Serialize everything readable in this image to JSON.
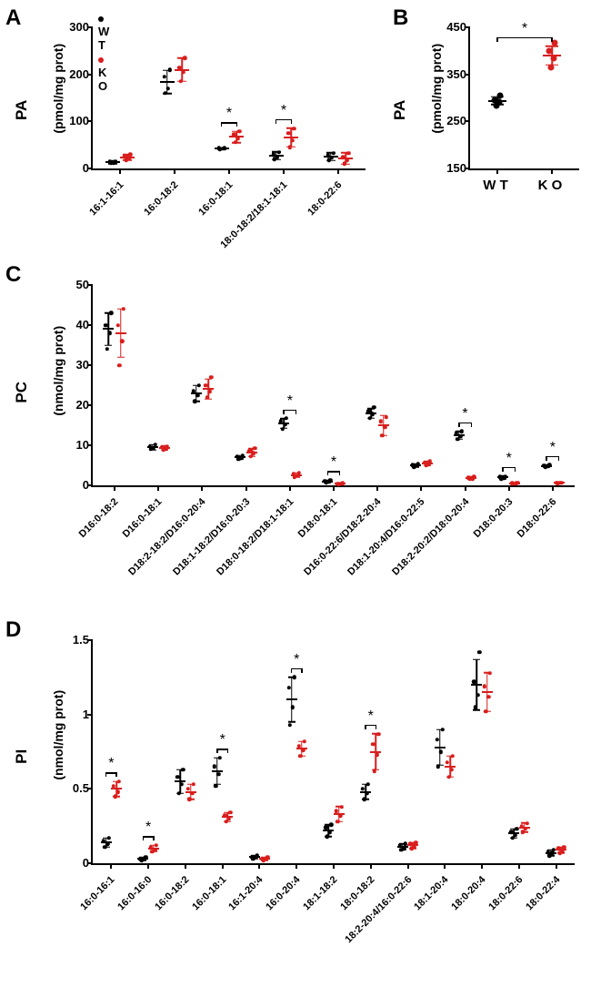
{
  "colors": {
    "wt": "#000000",
    "ko": "#d91e1e",
    "axis": "#000000",
    "bg": "#ffffff"
  },
  "legend": {
    "wt": "W T",
    "ko": "K O"
  },
  "panels": {
    "A": {
      "label": "A",
      "ytitle": "PA",
      "ysub": "(pmol/mg prot)",
      "ylim": [
        0,
        300
      ],
      "ytick_step": 100,
      "categories": [
        "16:1-16:1",
        "16:0-18:2",
        "16:0-18:1",
        "18:0-18:2/18:1-18:1",
        "18:0-22:6"
      ],
      "wt": {
        "mean": [
          13,
          184,
          42,
          27,
          25
        ],
        "err": [
          3,
          25,
          2,
          8,
          8
        ],
        "points": [
          [
            11,
            12,
            15,
            14
          ],
          [
            160,
            170,
            195,
            210
          ],
          [
            40,
            42,
            43,
            43
          ],
          [
            20,
            24,
            30,
            34
          ],
          [
            18,
            23,
            28,
            32
          ]
        ]
      },
      "ko": {
        "mean": [
          24,
          210,
          67,
          66,
          21
        ],
        "err": [
          6,
          25,
          12,
          20,
          12
        ],
        "points": [
          [
            18,
            22,
            26,
            30
          ],
          [
            186,
            205,
            215,
            235
          ],
          [
            56,
            63,
            72,
            79
          ],
          [
            45,
            60,
            75,
            85
          ],
          [
            10,
            18,
            24,
            33
          ]
        ]
      },
      "sig": [
        2,
        3
      ]
    },
    "B": {
      "label": "B",
      "ytitle": "PA",
      "ysub": "(pmol/mg prot)",
      "ylim": [
        150,
        450
      ],
      "ytick_step": 100,
      "categories": [
        "W T",
        "K O"
      ],
      "wt": {
        "mean": [
          294
        ],
        "err": [
          8
        ],
        "points": [
          [
            284,
            292,
            296,
            305
          ]
        ]
      },
      "ko": {
        "mean": [
          390
        ],
        "err": [
          20
        ],
        "points": [
          [
            365,
            385,
            400,
            418
          ]
        ]
      },
      "sig": [
        0
      ]
    },
    "C": {
      "label": "C",
      "ytitle": "PC",
      "ysub": "(nmol/mg prot)",
      "ylim": [
        0,
        50
      ],
      "ytick_step": 10,
      "categories": [
        "D16:0-18:2",
        "D16:0-18:1",
        "D18:2-18:2/D16:0-20:4",
        "D18:1-18:2/D16:0-20:3",
        "D18:0-18:2/D18:1-18:1",
        "D18:0-18:1",
        "D16:0-22:6/D18:2-20:4",
        "D18:1-20:4/D16:0-22:5",
        "D18:2-20:2/D18:0-20:4",
        "D18:0-20:3",
        "D18:0-22:6"
      ],
      "wt": {
        "mean": [
          39,
          9.5,
          23,
          7,
          15.5,
          1,
          18,
          5,
          12.5,
          2,
          4.8
        ],
        "err": [
          4,
          0.7,
          2,
          0.5,
          1.2,
          0.3,
          1.2,
          0.4,
          1,
          0.3,
          0.3
        ],
        "points": [
          [
            34,
            38,
            40,
            43
          ],
          [
            9,
            9.3,
            9.7,
            10.2
          ],
          [
            21,
            22.5,
            23.5,
            25
          ],
          [
            6.5,
            6.8,
            7.2,
            7.5
          ],
          [
            14,
            15.2,
            16,
            16.8
          ],
          [
            0.7,
            0.9,
            1.1,
            1.3
          ],
          [
            16.8,
            17.8,
            18.5,
            19.5
          ],
          [
            4.6,
            4.9,
            5.1,
            5.4
          ],
          [
            11.5,
            12.3,
            13,
            13.5
          ],
          [
            1.7,
            1.9,
            2.1,
            2.3
          ],
          [
            4.5,
            4.7,
            5,
            5.1
          ]
        ]
      },
      "ko": {
        "mean": [
          38,
          9.3,
          24,
          8.2,
          2.6,
          0.4,
          15,
          5.5,
          1.8,
          0.5,
          0.6
        ],
        "err": [
          6,
          0.5,
          2.5,
          1,
          0.5,
          0.1,
          2.5,
          0.5,
          0.3,
          0.1,
          0.1
        ],
        "points": [
          [
            30,
            36,
            40,
            44
          ],
          [
            8.8,
            9.1,
            9.5,
            9.8
          ],
          [
            22,
            23.5,
            25,
            27
          ],
          [
            7.2,
            8,
            8.6,
            9.3
          ],
          [
            2.0,
            2.5,
            2.9,
            3.1
          ],
          [
            0.3,
            0.4,
            0.4,
            0.5
          ],
          [
            12.5,
            14.5,
            16,
            17
          ],
          [
            5,
            5.3,
            5.7,
            6
          ],
          [
            1.5,
            1.7,
            1.9,
            2.1
          ],
          [
            0.4,
            0.5,
            0.5,
            0.6
          ],
          [
            0.5,
            0.6,
            0.6,
            0.7
          ]
        ]
      },
      "sig": [
        4,
        5,
        8,
        9,
        10
      ]
    },
    "D": {
      "label": "D",
      "ytitle": "PI",
      "ysub": "(nmol/mg prot)",
      "ylim": [
        0,
        1.5
      ],
      "ytick_step": 0.5,
      "categories": [
        "16:0-16:1",
        "16:0-16:0",
        "16:0-18:2",
        "16:0-18:1",
        "16:1-20:4",
        "16:0-20:4",
        "18:1-18:2",
        "18:0-18:2",
        "18:2-20:4/16:0-22:6",
        "18:1-20:4",
        "18:0-20:4",
        "18:0-22:6",
        "18:0-22:4"
      ],
      "wt": {
        "mean": [
          0.14,
          0.03,
          0.55,
          0.62,
          0.04,
          1.1,
          0.22,
          0.48,
          0.11,
          0.78,
          1.2,
          0.2,
          0.07
        ],
        "err": [
          0.03,
          0.01,
          0.08,
          0.09,
          0.01,
          0.15,
          0.04,
          0.05,
          0.02,
          0.12,
          0.17,
          0.03,
          0.02
        ],
        "points": [
          [
            0.11,
            0.13,
            0.15,
            0.17
          ],
          [
            0.02,
            0.03,
            0.03,
            0.04
          ],
          [
            0.47,
            0.53,
            0.58,
            0.63
          ],
          [
            0.52,
            0.6,
            0.65,
            0.71
          ],
          [
            0.03,
            0.04,
            0.04,
            0.05
          ],
          [
            0.93,
            1.05,
            1.18,
            1.25
          ],
          [
            0.18,
            0.21,
            0.24,
            0.26
          ],
          [
            0.43,
            0.47,
            0.5,
            0.53
          ],
          [
            0.09,
            0.1,
            0.12,
            0.13
          ],
          [
            0.65,
            0.75,
            0.83,
            0.9
          ],
          [
            1.05,
            1.13,
            1.22,
            1.42
          ],
          [
            0.17,
            0.19,
            0.21,
            0.23
          ],
          [
            0.05,
            0.07,
            0.08,
            0.09
          ]
        ]
      },
      "ko": {
        "mean": [
          0.5,
          0.1,
          0.48,
          0.31,
          0.03,
          0.77,
          0.33,
          0.75,
          0.12,
          0.65,
          1.15,
          0.24,
          0.09
        ],
        "err": [
          0.05,
          0.02,
          0.05,
          0.03,
          0.01,
          0.05,
          0.05,
          0.12,
          0.02,
          0.07,
          0.13,
          0.03,
          0.02
        ],
        "points": [
          [
            0.45,
            0.48,
            0.52,
            0.55
          ],
          [
            0.08,
            0.09,
            0.11,
            0.12
          ],
          [
            0.43,
            0.47,
            0.5,
            0.53
          ],
          [
            0.28,
            0.3,
            0.32,
            0.34
          ],
          [
            0.02,
            0.03,
            0.03,
            0.04
          ],
          [
            0.72,
            0.76,
            0.79,
            0.82
          ],
          [
            0.28,
            0.32,
            0.35,
            0.38
          ],
          [
            0.62,
            0.73,
            0.8,
            0.87
          ],
          [
            0.1,
            0.11,
            0.13,
            0.14
          ],
          [
            0.58,
            0.63,
            0.68,
            0.72
          ],
          [
            1.02,
            1.12,
            1.19,
            1.28
          ],
          [
            0.21,
            0.23,
            0.25,
            0.27
          ],
          [
            0.07,
            0.08,
            0.1,
            0.11
          ]
        ]
      },
      "sig": [
        0,
        1,
        3,
        5,
        7
      ]
    }
  }
}
